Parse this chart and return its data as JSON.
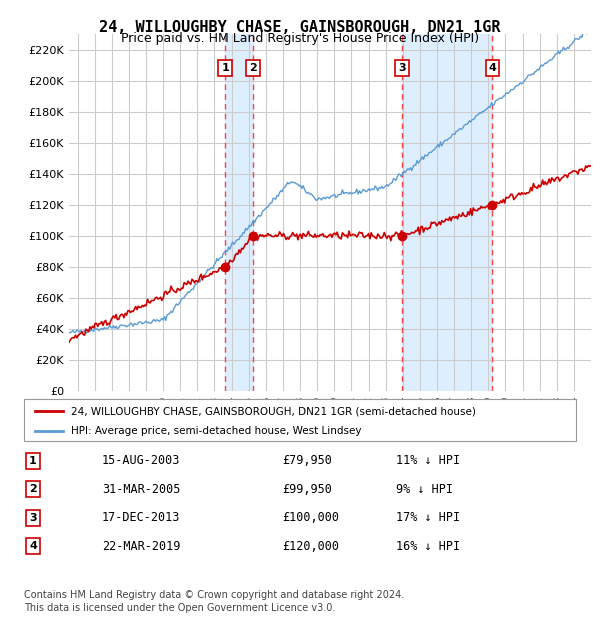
{
  "title": "24, WILLOUGHBY CHASE, GAINSBOROUGH, DN21 1GR",
  "subtitle": "Price paid vs. HM Land Registry's House Price Index (HPI)",
  "ylabel_ticks": [
    "£0",
    "£20K",
    "£40K",
    "£60K",
    "£80K",
    "£100K",
    "£120K",
    "£140K",
    "£160K",
    "£180K",
    "£200K",
    "£220K"
  ],
  "ytick_values": [
    0,
    20000,
    40000,
    60000,
    80000,
    100000,
    120000,
    140000,
    160000,
    180000,
    200000,
    220000
  ],
  "ylim": [
    0,
    230000
  ],
  "xlim_start": 1994.5,
  "xlim_end": 2025.0,
  "xtick_years": [
    1995,
    1996,
    1997,
    1998,
    1999,
    2000,
    2001,
    2002,
    2003,
    2004,
    2005,
    2006,
    2007,
    2008,
    2009,
    2010,
    2011,
    2012,
    2013,
    2014,
    2015,
    2016,
    2017,
    2018,
    2019,
    2020,
    2021,
    2022,
    2023,
    2024
  ],
  "red_line_color": "#cc0000",
  "blue_line_color": "#5b9bd5",
  "shaded_color": "#ddeeff",
  "grid_color": "#cccccc",
  "dashed_line_color": "#ff4444",
  "transaction_markers": [
    {
      "num": 1,
      "year": 2003.62,
      "price": 79950,
      "date": "15-AUG-2003",
      "pct": "11%"
    },
    {
      "num": 2,
      "year": 2005.25,
      "price": 99950,
      "date": "31-MAR-2005",
      "pct": "9%"
    },
    {
      "num": 3,
      "year": 2013.96,
      "price": 100000,
      "date": "17-DEC-2013",
      "pct": "17%"
    },
    {
      "num": 4,
      "year": 2019.23,
      "price": 120000,
      "date": "22-MAR-2019",
      "pct": "16%"
    }
  ],
  "legend_entries": [
    {
      "label": "24, WILLOUGHBY CHASE, GAINSBOROUGH, DN21 1GR (semi-detached house)",
      "color": "#cc0000"
    },
    {
      "label": "HPI: Average price, semi-detached house, West Lindsey",
      "color": "#5b9bd5"
    }
  ],
  "footer_lines": [
    "Contains HM Land Registry data © Crown copyright and database right 2024.",
    "This data is licensed under the Open Government Licence v3.0."
  ],
  "table_rows": [
    {
      "num": 1,
      "date": "15-AUG-2003",
      "price": "£79,950",
      "pct": "11% ↓ HPI"
    },
    {
      "num": 2,
      "date": "31-MAR-2005",
      "price": "£99,950",
      "pct": "9% ↓ HPI"
    },
    {
      "num": 3,
      "date": "17-DEC-2013",
      "price": "£100,000",
      "pct": "17% ↓ HPI"
    },
    {
      "num": 4,
      "date": "22-MAR-2019",
      "price": "£120,000",
      "pct": "16% ↓ HPI"
    }
  ]
}
